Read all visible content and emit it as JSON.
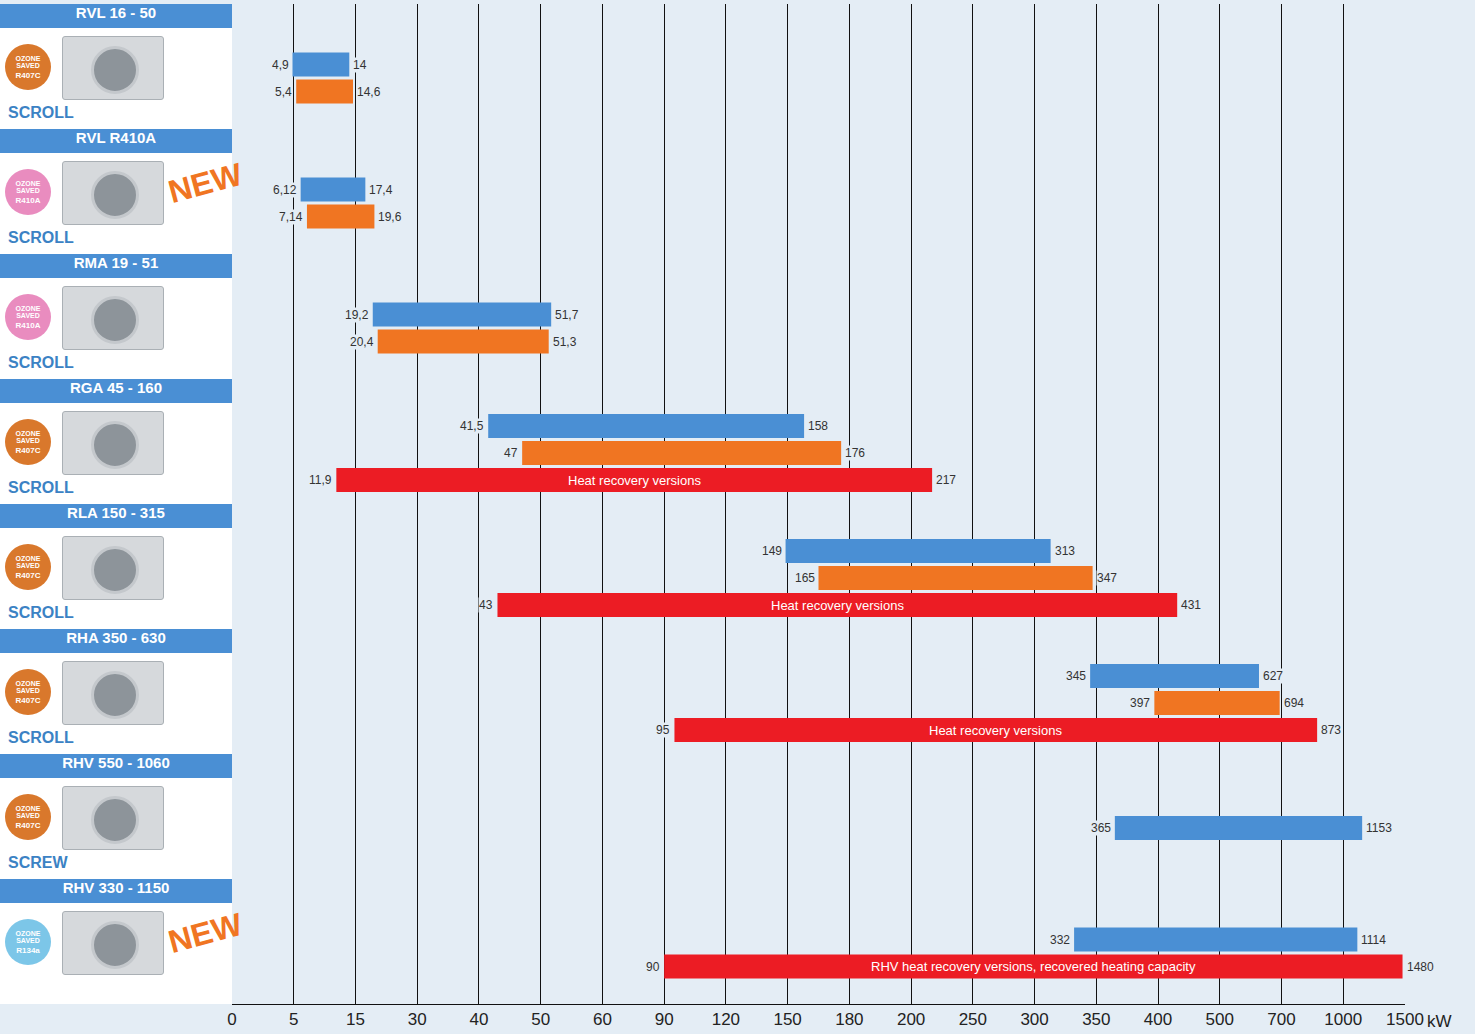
{
  "chart_data": {
    "type": "range_bar",
    "orientation": "horizontal",
    "grid": true,
    "data_labels": true,
    "xlim": [
      0,
      1500
    ],
    "xticks": [
      0,
      5,
      15,
      30,
      40,
      50,
      60,
      90,
      120,
      150,
      180,
      200,
      250,
      300,
      350,
      400,
      500,
      700,
      1000,
      1500
    ],
    "xlabel": "kW",
    "groups": [
      {
        "name": "RVL 16 - 50",
        "compressor": "SCROLL",
        "badge": "OZONE SAVED",
        "refrigerant": "R407C",
        "badge_color": "#d9782c",
        "bars": [
          {
            "start": 4.9,
            "start_label": "4,9",
            "end": 14,
            "color": "#4a8fd4"
          },
          {
            "start": 5.4,
            "start_label": "5,4",
            "end": 14.6,
            "end_label": "14,6",
            "color": "#f07522"
          }
        ]
      },
      {
        "name": "RVL R410A",
        "compressor": "SCROLL",
        "badge": "OZONE SAVED",
        "refrigerant": "R410A",
        "badge_color": "#e98cbf",
        "tag": "NEW",
        "bars": [
          {
            "start": 6.12,
            "start_label": "6,12",
            "end": 17.4,
            "end_label": "17,4",
            "color": "#4a8fd4"
          },
          {
            "start": 7.14,
            "start_label": "7,14",
            "end": 19.6,
            "end_label": "19,6",
            "color": "#f07522"
          }
        ]
      },
      {
        "name": "RMA 19 - 51",
        "compressor": "SCROLL",
        "badge": "OZONE SAVED",
        "refrigerant": "R410A",
        "badge_color": "#e98cbf",
        "bars": [
          {
            "start": 19.2,
            "start_label": "19,2",
            "end": 51.7,
            "end_label": "51,7",
            "color": "#4a8fd4"
          },
          {
            "start": 20.4,
            "start_label": "20,4",
            "end": 51.3,
            "end_label": "51,3",
            "color": "#f07522"
          }
        ]
      },
      {
        "name": "RGA 45 - 160",
        "compressor": "SCROLL",
        "badge": "OZONE SAVED",
        "refrigerant": "R407C",
        "badge_color": "#d9782c",
        "bars": [
          {
            "start": 41.5,
            "start_label": "41,5",
            "end": 158,
            "color": "#4a8fd4"
          },
          {
            "start": 47,
            "end": 176,
            "color": "#f07522"
          },
          {
            "start": 11.9,
            "start_label": "11,9",
            "end": 217,
            "color": "#ec1c24",
            "text": "Heat recovery versions"
          }
        ]
      },
      {
        "name": "RLA 150 - 315",
        "compressor": "SCROLL",
        "badge": "OZONE SAVED",
        "refrigerant": "R407C",
        "badge_color": "#d9782c",
        "bars": [
          {
            "start": 149,
            "end": 313,
            "color": "#4a8fd4"
          },
          {
            "start": 165,
            "end": 347,
            "color": "#f07522"
          },
          {
            "start": 43,
            "end": 431,
            "color": "#ec1c24",
            "text": "Heat recovery versions"
          }
        ]
      },
      {
        "name": "RHA 350 - 630",
        "compressor": "SCROLL",
        "badge": "OZONE SAVED",
        "refrigerant": "R407C",
        "badge_color": "#d9782c",
        "bars": [
          {
            "start": 345,
            "end": 627,
            "color": "#4a8fd4"
          },
          {
            "start": 397,
            "end": 694,
            "color": "#f07522"
          },
          {
            "start": 95,
            "end": 873,
            "color": "#ec1c24",
            "text": "Heat recovery versions"
          }
        ]
      },
      {
        "name": "RHV 550 - 1060",
        "compressor": "SCREW",
        "badge": "OZONE SAVED",
        "refrigerant": "R407C",
        "badge_color": "#d9782c",
        "bars": [
          {
            "start": 365,
            "end": 1153,
            "color": "#4a8fd4"
          }
        ]
      },
      {
        "name": "RHV 330 - 1150",
        "badge": "OZONE SAVED",
        "refrigerant": "R134a",
        "badge_color": "#7cc6e8",
        "tag": "NEW",
        "bars": [
          {
            "start": 332,
            "end": 1114,
            "color": "#4a8fd4"
          },
          {
            "start": 90,
            "end": 1480,
            "color": "#ec1c24",
            "text": "RHV heat recovery versions, recovered heating capacity"
          }
        ]
      }
    ]
  }
}
